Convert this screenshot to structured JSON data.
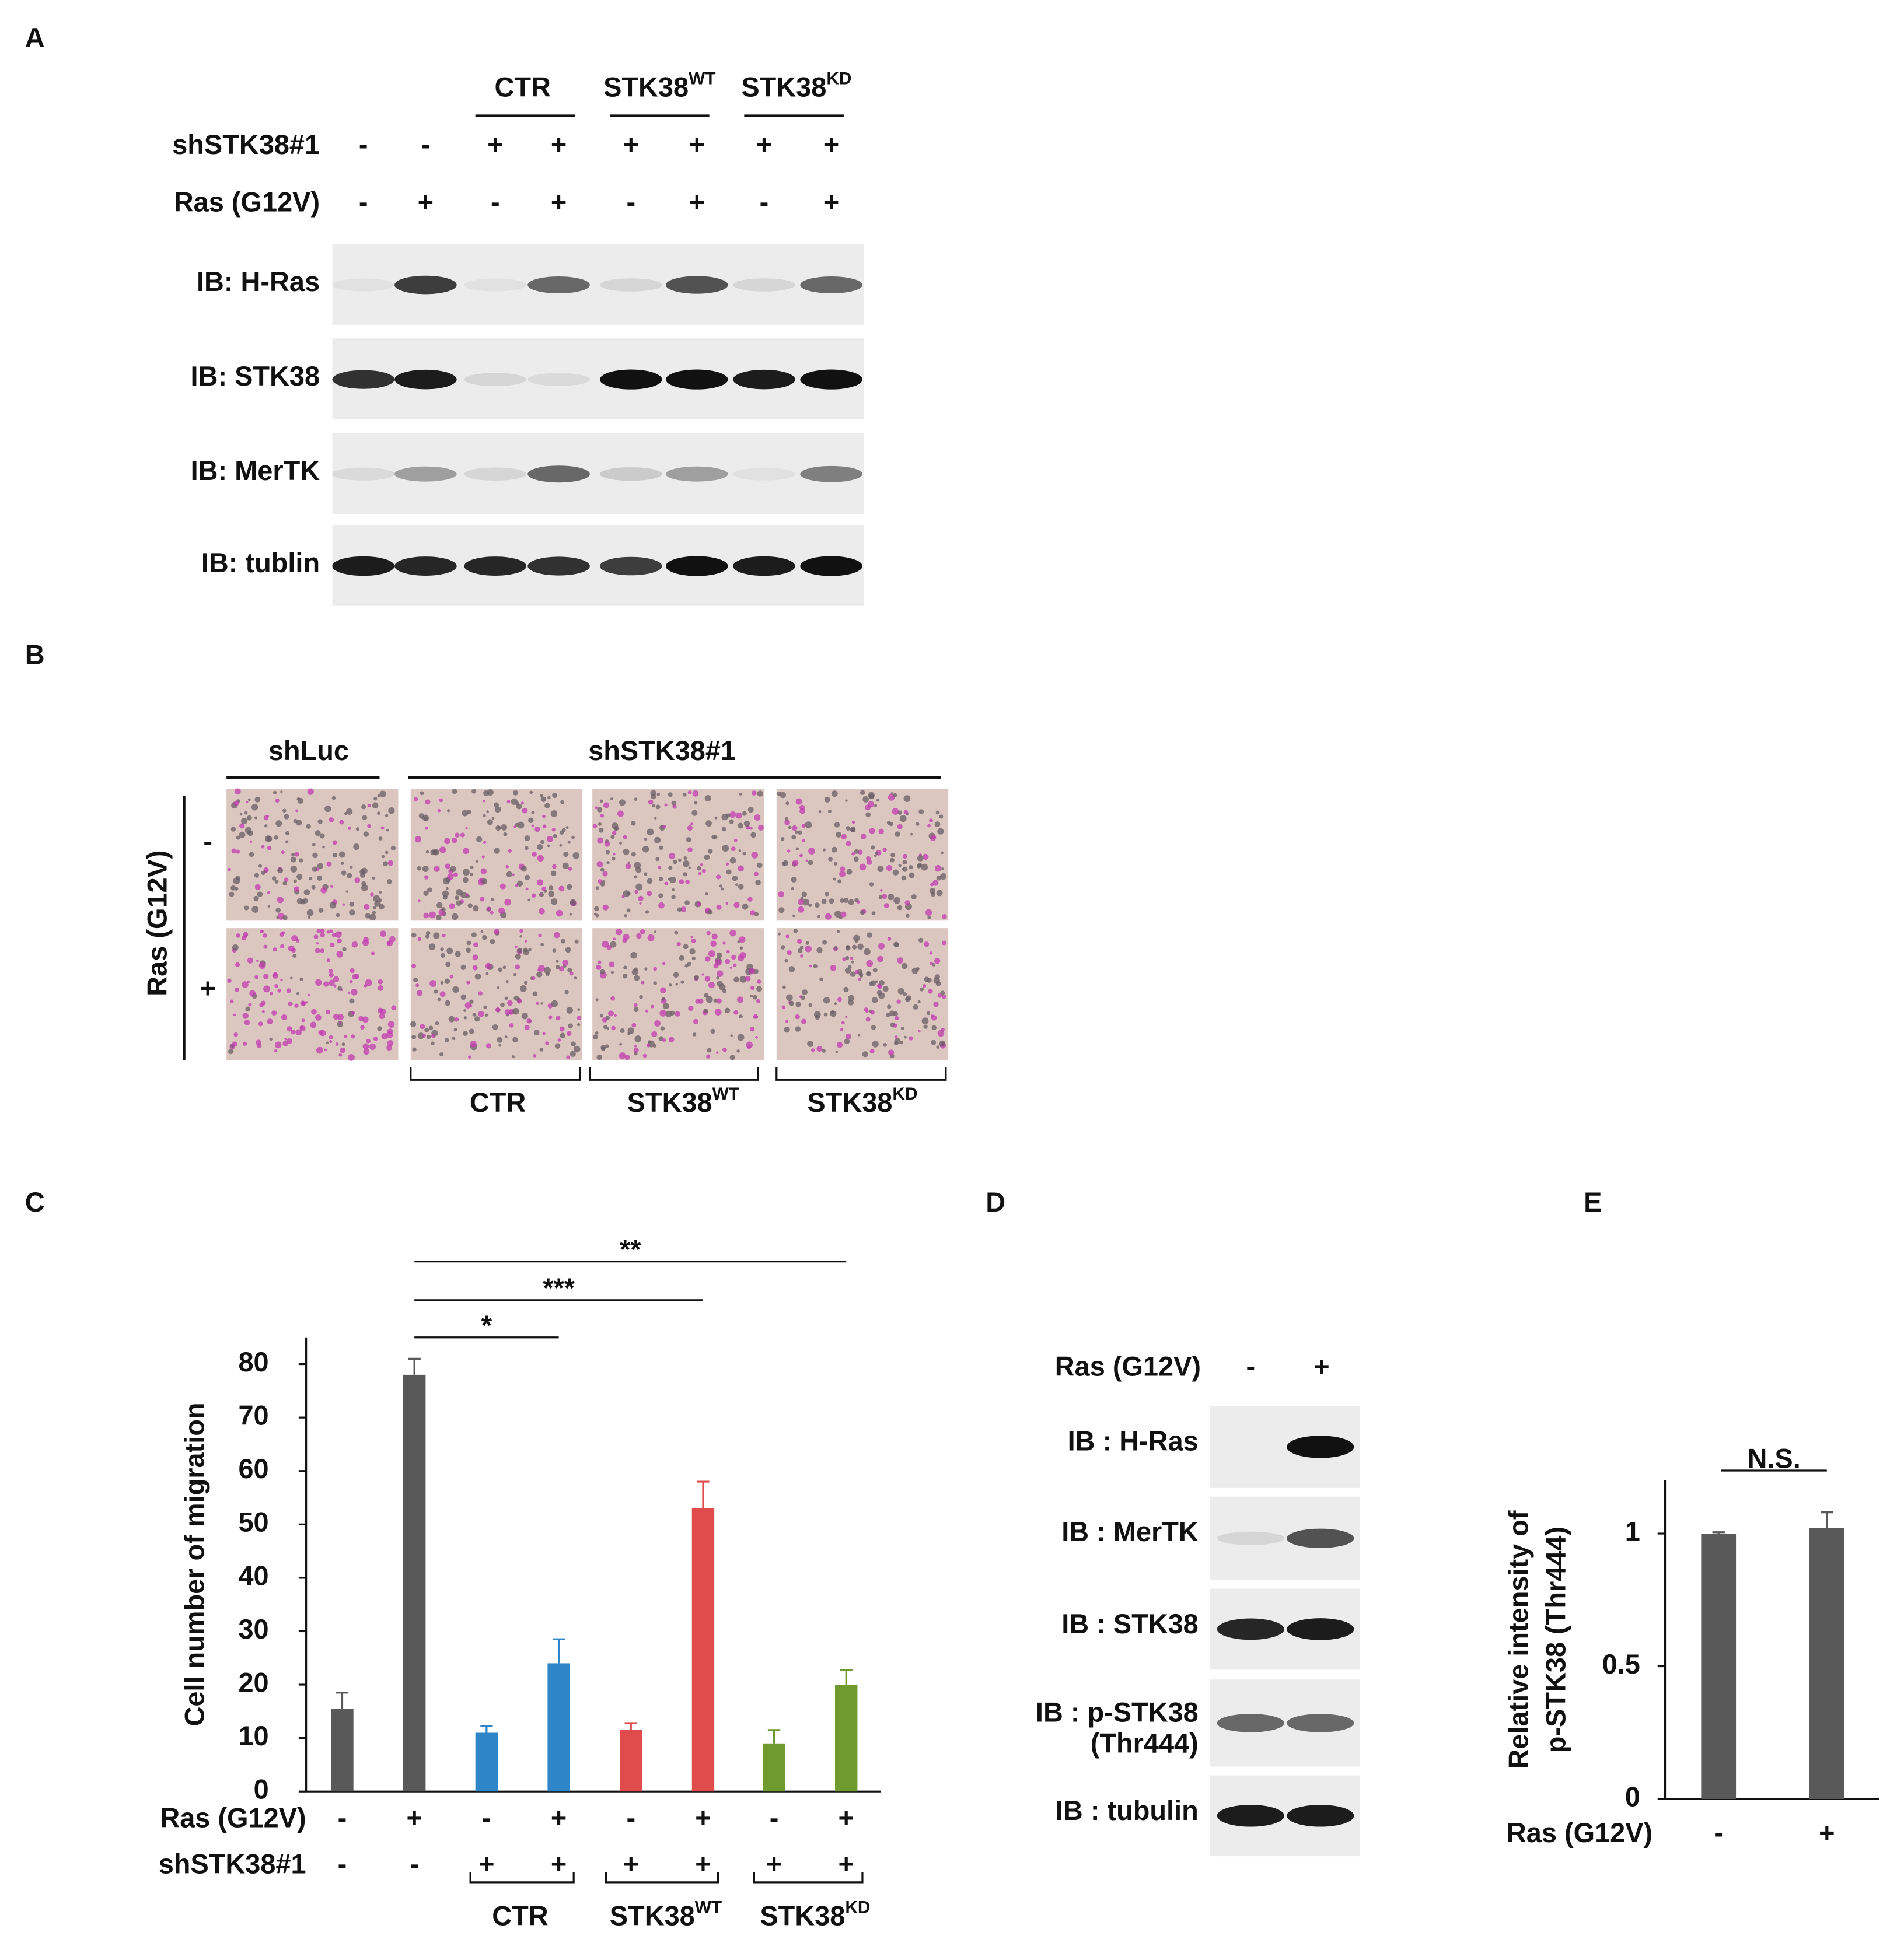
{
  "panel_a": {
    "label": "A",
    "groups": [
      {
        "name": "CTR"
      },
      {
        "name": "STK38",
        "sup": "WT"
      },
      {
        "name": "STK38",
        "sup": "KD"
      }
    ],
    "rows": [
      {
        "label": "shSTK38#1",
        "signs": [
          "-",
          "-",
          "+",
          "+",
          "+",
          "+",
          "+",
          "+"
        ]
      },
      {
        "label": "Ras (G12V)",
        "signs": [
          "-",
          "+",
          "-",
          "+",
          "-",
          "+",
          "-",
          "+"
        ]
      }
    ],
    "blots": [
      "IB: H-Ras",
      "IB: STK38",
      "IB: MerTK",
      "IB: tublin"
    ]
  },
  "panel_b": {
    "label": "B",
    "top_labels": [
      "shLuc",
      "shSTK38#1"
    ],
    "side_label": "Ras (G12V)",
    "side_signs": [
      "-",
      "+"
    ],
    "groups": [
      {
        "name": "CTR"
      },
      {
        "name": "STK38",
        "sup": "WT"
      },
      {
        "name": "STK38",
        "sup": "KD"
      }
    ]
  },
  "chart_data": [
    {
      "type": "bar",
      "panel_label": "C",
      "ylabel": "Cell number of migration",
      "values": [
        15.5,
        78,
        11,
        24,
        11.5,
        53,
        9,
        20
      ],
      "errors": [
        3,
        3,
        1.3,
        4.5,
        1.3,
        5,
        2.5,
        2.7
      ],
      "colors": [
        "#595959",
        "#595959",
        "#2e86c8",
        "#2e86c8",
        "#e04b4b",
        "#e04b4b",
        "#6f9a2e",
        "#6f9a2e"
      ],
      "ylim": [
        0,
        85
      ],
      "yticks": [
        0,
        10,
        20,
        30,
        40,
        50,
        60,
        70,
        80
      ],
      "rows": [
        {
          "label": "Ras (G12V)",
          "signs": [
            "-",
            "+",
            "-",
            "+",
            "-",
            "+",
            "-",
            "+"
          ]
        },
        {
          "label": "shSTK38#1",
          "signs": [
            "-",
            "-",
            "+",
            "+",
            "+",
            "+",
            "+",
            "+"
          ]
        }
      ],
      "groups": [
        {
          "name": "CTR"
        },
        {
          "name": "STK38",
          "sup": "WT"
        },
        {
          "name": "STK38",
          "sup": "KD"
        }
      ],
      "annotations": [
        "*",
        "***",
        "**"
      ]
    },
    {
      "type": "bar",
      "panel_label": "E",
      "ylabel": [
        "Relative intensity of",
        "p-STK38 (Thr444)"
      ],
      "values": [
        1,
        1.02
      ],
      "errors": [
        0.005,
        0.06
      ],
      "colors": [
        "#595959",
        "#595959"
      ],
      "ylim": [
        0,
        1.2
      ],
      "yticks": [
        0,
        0.5,
        1
      ],
      "rows": [
        {
          "label": "Ras (G12V)",
          "signs": [
            "-",
            "+"
          ]
        }
      ],
      "annotations": [
        "N.S."
      ]
    }
  ],
  "panel_d": {
    "label": "D",
    "row": {
      "label": "Ras (G12V)",
      "signs": [
        "-",
        "+"
      ]
    },
    "blots": [
      {
        "label": "IB : H-Ras"
      },
      {
        "label": "IB : MerTK"
      },
      {
        "label": "IB : STK38"
      },
      {
        "label": "IB : p-STK38",
        "sublabel": "(Thr444)"
      },
      {
        "label": "IB : tubulin"
      }
    ]
  }
}
